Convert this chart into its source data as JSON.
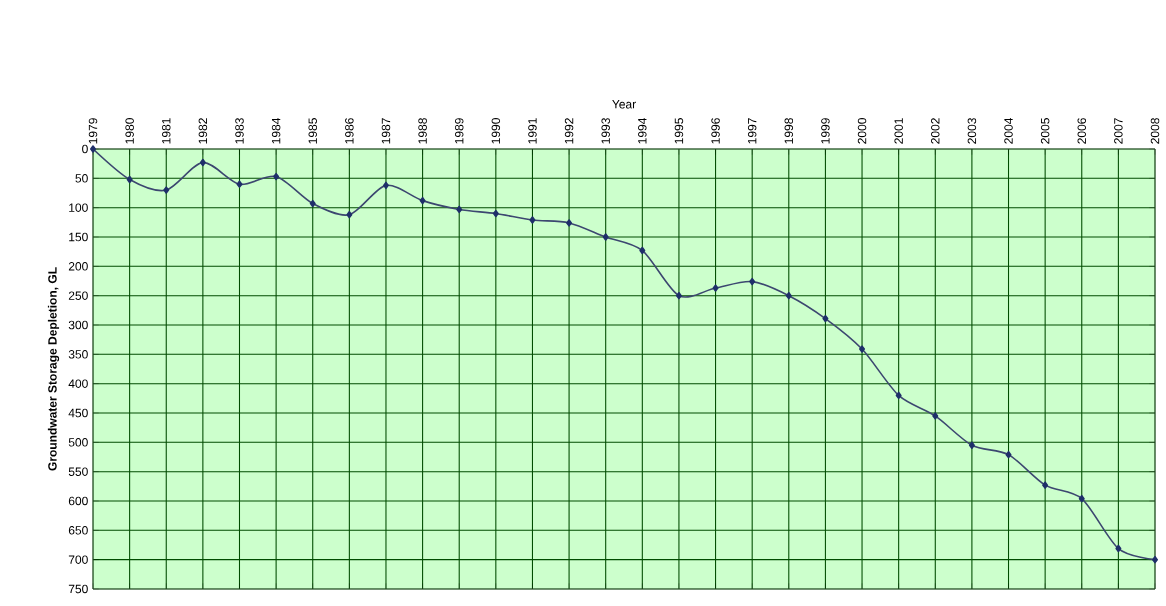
{
  "chart_data": {
    "type": "line",
    "xlabel": "Year",
    "ylabel": "Groundwater Storage Depletion, GL",
    "x": [
      1979,
      1980,
      1981,
      1982,
      1983,
      1984,
      1985,
      1986,
      1987,
      1988,
      1989,
      1990,
      1991,
      1992,
      1993,
      1994,
      1995,
      1996,
      1997,
      1998,
      1999,
      2000,
      2001,
      2002,
      2003,
      2004,
      2005,
      2006,
      2007,
      2008
    ],
    "series": [
      {
        "color": "#1f2f6a",
        "values": [
          0,
          52,
          70,
          23,
          60,
          47,
          93,
          112,
          62,
          88,
          103,
          110,
          121,
          126,
          150,
          173,
          250,
          237,
          226,
          250,
          289,
          341,
          420,
          455,
          505,
          521,
          573,
          596,
          681,
          700
        ]
      }
    ],
    "xlim": [
      1979,
      2008
    ],
    "xticks": [
      1979,
      1980,
      1981,
      1982,
      1983,
      1984,
      1985,
      1986,
      1987,
      1988,
      1989,
      1990,
      1991,
      1992,
      1993,
      1994,
      1995,
      1996,
      1997,
      1998,
      1999,
      2000,
      2001,
      2002,
      2003,
      2004,
      2005,
      2006,
      2007,
      2008
    ],
    "ylim": [
      750,
      0
    ],
    "yticks": [
      0,
      50,
      100,
      150,
      200,
      250,
      300,
      350,
      400,
      450,
      500,
      550,
      600,
      650,
      700,
      750
    ],
    "grid": true,
    "marker": "diamond",
    "line_style": "solid"
  }
}
